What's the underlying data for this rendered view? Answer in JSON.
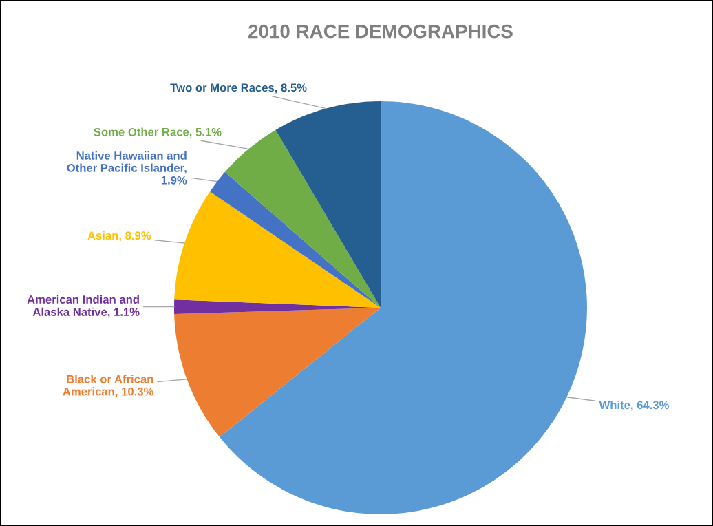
{
  "chart_data": {
    "type": "pie",
    "title": "2010 RACE DEMOGRAPHICS",
    "categories": [
      "White, 64.3%",
      "Black or African American, 10.3%",
      "American Indian and Alaska Native, 1.1%",
      "Asian, 8.9%",
      "Native Hawaiian and Other Pacific Islander, 1.9%",
      "Some Other Race, 5.1%",
      "Two or More Races, 8.5%"
    ],
    "values": [
      64.3,
      10.3,
      1.1,
      8.9,
      1.9,
      5.1,
      8.5
    ],
    "colors": [
      "#5b9bd5",
      "#ed7d31",
      "#7030a0",
      "#ffc000",
      "#4472c4",
      "#70ad47",
      "#255e91"
    ]
  }
}
